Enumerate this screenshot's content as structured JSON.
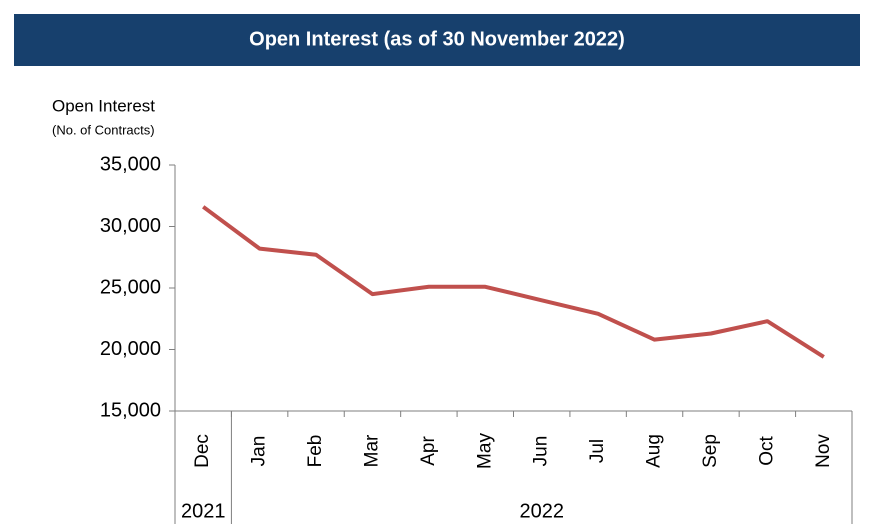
{
  "chart_data": {
    "type": "line",
    "title": "Open Interest (as of 30 November 2022)",
    "y_label": "Open Interest",
    "y_sublabel": "(No. of Contracts)",
    "categories": [
      "Dec",
      "Jan",
      "Feb",
      "Mar",
      "Apr",
      "May",
      "Jun",
      "Jul",
      "Aug",
      "Sep",
      "Oct",
      "Nov"
    ],
    "years": [
      "2021",
      "2022"
    ],
    "series": [
      {
        "name": "Open Interest",
        "color": "#c0504d",
        "values": [
          31600,
          28200,
          27700,
          24500,
          25100,
          25100,
          24000,
          22900,
          20800,
          21300,
          22300,
          19400
        ]
      }
    ],
    "ylim": [
      15000,
      35000
    ],
    "yticks": [
      {
        "value": 15000,
        "label": "15,000"
      },
      {
        "value": 20000,
        "label": "20,000"
      },
      {
        "value": 25000,
        "label": "25,000"
      },
      {
        "value": 30000,
        "label": "30,000"
      },
      {
        "value": 35000,
        "label": "35,000"
      }
    ]
  }
}
